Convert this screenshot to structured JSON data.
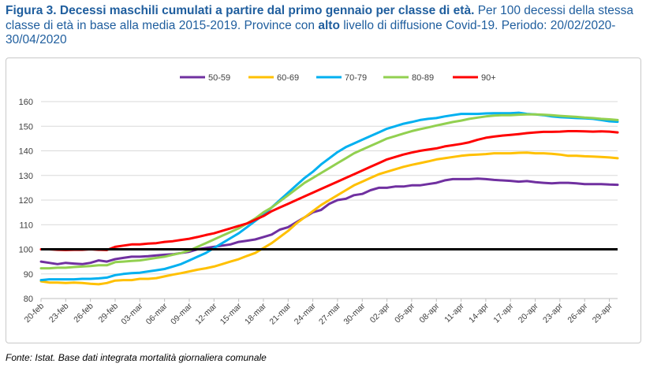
{
  "caption": {
    "bold_prefix": "Figura 3. Decessi maschili cumulati a partire dal primo gennaio per classe di età.",
    "text_part1": " Per 100 decessi della stessa classe di età in base alla media 2015-2019. Province con ",
    "bold_word": "alto",
    "text_part2": " livello di diffusione Covid-19. Periodo: 20/02/2020-30/04/2020"
  },
  "source": "Fonte: Istat. Base dati integrata mortalità giornaliera comunale",
  "chart_data": {
    "type": "line",
    "title": "",
    "xlabel": "",
    "ylabel": "",
    "ylim": [
      80,
      160
    ],
    "yticks": [
      80,
      90,
      100,
      110,
      120,
      130,
      140,
      150,
      160
    ],
    "grid": "horizontal",
    "legend_position": "top",
    "x": [
      "20-feb",
      "21-feb",
      "22-feb",
      "23-feb",
      "24-feb",
      "25-feb",
      "26-feb",
      "27-feb",
      "28-feb",
      "29-feb",
      "01-mar",
      "02-mar",
      "03-mar",
      "04-mar",
      "05-mar",
      "06-mar",
      "07-mar",
      "08-mar",
      "09-mar",
      "10-mar",
      "11-mar",
      "12-mar",
      "13-mar",
      "14-mar",
      "15-mar",
      "16-mar",
      "17-mar",
      "18-mar",
      "19-mar",
      "20-mar",
      "21-mar",
      "22-mar",
      "23-mar",
      "24-mar",
      "25-mar",
      "26-mar",
      "27-mar",
      "28-mar",
      "29-mar",
      "30-mar",
      "31-mar",
      "01-apr",
      "02-apr",
      "03-apr",
      "04-apr",
      "05-apr",
      "06-apr",
      "07-apr",
      "08-apr",
      "09-apr",
      "10-apr",
      "11-apr",
      "12-apr",
      "13-apr",
      "14-apr",
      "15-apr",
      "16-apr",
      "17-apr",
      "18-apr",
      "19-apr",
      "20-apr",
      "21-apr",
      "22-apr",
      "23-apr",
      "24-apr",
      "25-apr",
      "26-apr",
      "27-apr",
      "28-apr",
      "29-apr",
      "30-apr"
    ],
    "x_tick_labels": [
      "20-feb",
      "23-feb",
      "26-feb",
      "29-feb",
      "03-mar",
      "06-mar",
      "09-mar",
      "12-mar",
      "15-mar",
      "18-mar",
      "21-mar",
      "24-mar",
      "27-mar",
      "30-mar",
      "02-apr",
      "05-apr",
      "08-apr",
      "11-apr",
      "14-apr",
      "17-apr",
      "20-apr",
      "23-apr",
      "26-apr",
      "29-apr"
    ],
    "reference_line": 100,
    "series": [
      {
        "name": "50-59",
        "color": "#7030a0",
        "values": [
          95,
          94.5,
          94,
          94.5,
          94.2,
          94,
          94.5,
          95.5,
          95,
          96,
          96.5,
          97,
          97,
          97.2,
          97.5,
          97.8,
          98,
          98.5,
          99,
          100,
          100.5,
          101,
          101.5,
          102,
          103,
          103.5,
          104,
          105,
          106,
          108,
          109,
          111,
          113,
          115,
          116,
          118.5,
          120,
          120.5,
          122,
          122.5,
          124,
          125,
          125,
          125.5,
          125.5,
          126,
          126,
          126.5,
          127,
          128,
          128.5,
          128.5,
          128.5,
          128.7,
          128.5,
          128.2,
          128,
          127.8,
          127.5,
          127.7,
          127.3,
          127,
          126.8,
          127,
          127,
          126.8,
          126.5,
          126.5,
          126.5,
          126.3,
          126.2
        ]
      },
      {
        "name": "60-69",
        "color": "#ffc000",
        "values": [
          87,
          86.5,
          86.5,
          86.3,
          86.5,
          86.3,
          86,
          85.8,
          86.3,
          87.3,
          87.5,
          87.5,
          88,
          88,
          88.3,
          89,
          89.7,
          90.3,
          91,
          91.7,
          92.3,
          93,
          94,
          95,
          96,
          97.3,
          98.5,
          100.5,
          102.5,
          105,
          107.5,
          110.5,
          113,
          115.5,
          118,
          120,
          122,
          124,
          126,
          127.5,
          129,
          130.5,
          131.5,
          132.5,
          133.5,
          134.3,
          135,
          135.7,
          136.5,
          137,
          137.5,
          138,
          138.3,
          138.5,
          138.7,
          139,
          139,
          139,
          139.2,
          139.3,
          139,
          139,
          138.8,
          138.5,
          138,
          138,
          137.8,
          137.7,
          137.5,
          137.3,
          137
        ]
      },
      {
        "name": "70-79",
        "color": "#00b0f0",
        "values": [
          87.5,
          87.8,
          87.8,
          87.8,
          87.8,
          88,
          88,
          88.2,
          88.5,
          89.5,
          90,
          90.3,
          90.5,
          91,
          91.5,
          92,
          93,
          94,
          95.5,
          97,
          98.5,
          100.5,
          102.5,
          104.5,
          106.5,
          109,
          111.5,
          114,
          117,
          120,
          123,
          126,
          129,
          131.5,
          134.5,
          137,
          139.5,
          141.5,
          143,
          144.5,
          146,
          147.5,
          149,
          150,
          151,
          151.7,
          152.5,
          153,
          153.3,
          154,
          154.5,
          155,
          155,
          155,
          155.2,
          155.3,
          155.3,
          155.3,
          155.5,
          155,
          154.8,
          154.5,
          154,
          153.7,
          153.5,
          153.3,
          153.2,
          153,
          152.5,
          152,
          151.8
        ]
      },
      {
        "name": "80-89",
        "color": "#92d050",
        "values": [
          92.3,
          92.3,
          92.5,
          92.5,
          92.8,
          93,
          93.2,
          93.5,
          93.5,
          94.8,
          95,
          95.3,
          95.5,
          96,
          96.5,
          97,
          97.8,
          98.5,
          99.5,
          101,
          102.5,
          104,
          105.5,
          107,
          108.5,
          110.5,
          112.5,
          115,
          117,
          119.5,
          122,
          124.5,
          127,
          129,
          131,
          133,
          135,
          137,
          139,
          140.5,
          142,
          143.5,
          145,
          146,
          147,
          148,
          148.8,
          149.5,
          150.3,
          151,
          151.7,
          152.3,
          153,
          153.5,
          154,
          154.3,
          154.5,
          154.5,
          154.7,
          154.8,
          154.8,
          154.7,
          154.5,
          154.2,
          154,
          153.8,
          153.5,
          153.3,
          153,
          152.8,
          152.5
        ]
      },
      {
        "name": "90+",
        "color": "#ff0000",
        "values": [
          100,
          100,
          99.8,
          99.7,
          99.8,
          99.8,
          100,
          99.8,
          99.7,
          101,
          101.5,
          102,
          102,
          102.3,
          102.5,
          103,
          103.3,
          103.8,
          104.3,
          105,
          105.8,
          106.5,
          107.5,
          108.5,
          109.5,
          110.5,
          112,
          113.5,
          115.5,
          117,
          118.5,
          120,
          121.5,
          123,
          124.5,
          126,
          127.5,
          129,
          130.5,
          132,
          133.5,
          135,
          136.5,
          137.5,
          138.5,
          139.3,
          140,
          140.5,
          141,
          141.8,
          142.3,
          142.8,
          143.5,
          144.5,
          145.3,
          145.8,
          146.2,
          146.5,
          146.8,
          147.2,
          147.5,
          147.7,
          147.7,
          147.8,
          148,
          148,
          147.9,
          147.8,
          147.9,
          147.8,
          147.5
        ]
      }
    ]
  }
}
